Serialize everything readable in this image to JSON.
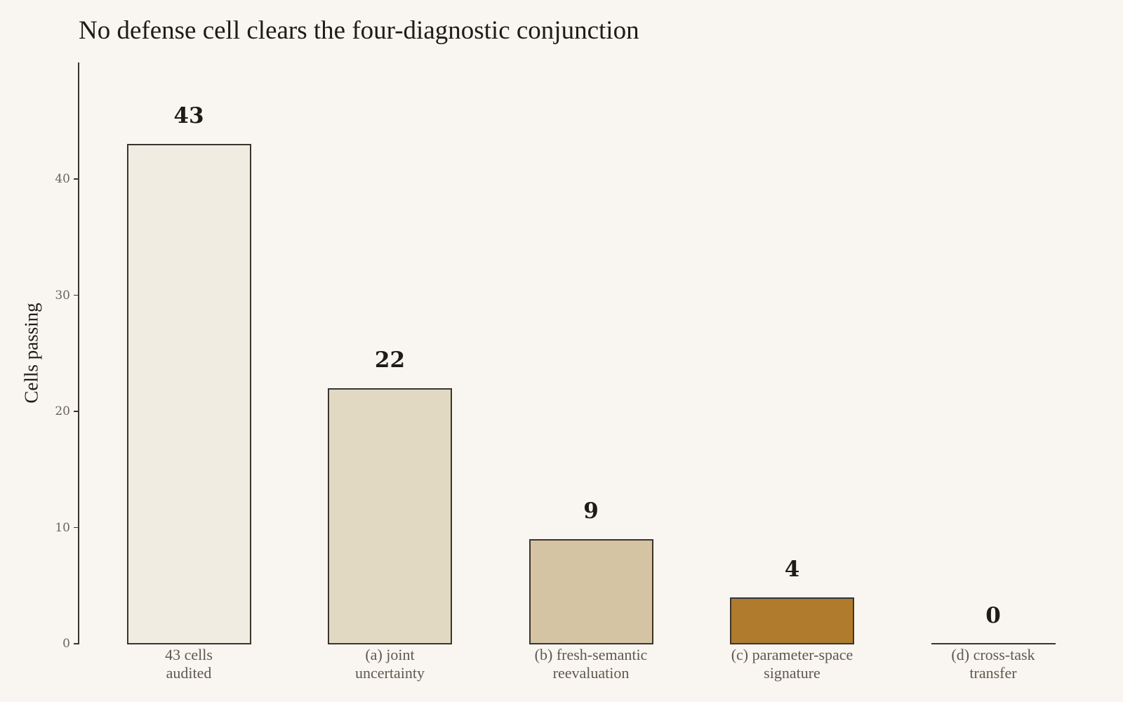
{
  "chart_data": {
    "type": "bar",
    "title": "No defense cell clears the four-diagnostic conjunction",
    "xlabel": "",
    "ylabel": "Cells passing",
    "ylim": [
      0,
      50
    ],
    "yticks": [
      0,
      10,
      20,
      30,
      40
    ],
    "grid": false,
    "legend": null,
    "categories": [
      "43 cells audited",
      "(a) joint uncertainty",
      "(b) fresh-semantic reevaluation",
      "(c) parameter-space signature",
      "(d) cross-task transfer"
    ],
    "category_lines": [
      [
        "43 cells",
        "audited"
      ],
      [
        "(a) joint",
        "uncertainty"
      ],
      [
        "(b) fresh-semantic",
        "reevaluation"
      ],
      [
        "(c) parameter-space",
        "signature"
      ],
      [
        "(d) cross-task",
        "transfer"
      ]
    ],
    "values": [
      43,
      22,
      9,
      4,
      0
    ],
    "value_labels": [
      "43",
      "22",
      "9",
      "4",
      "0"
    ],
    "colors": [
      "#f0ece2",
      "#e2d9c3",
      "#d5c4a3",
      "#b07b2d",
      "#3a352d"
    ]
  },
  "style": {
    "background": "#f9f6f1",
    "bar_edge": "#3a352d",
    "text_dark": "#1f1b16",
    "tick_text": "#6b6459"
  }
}
